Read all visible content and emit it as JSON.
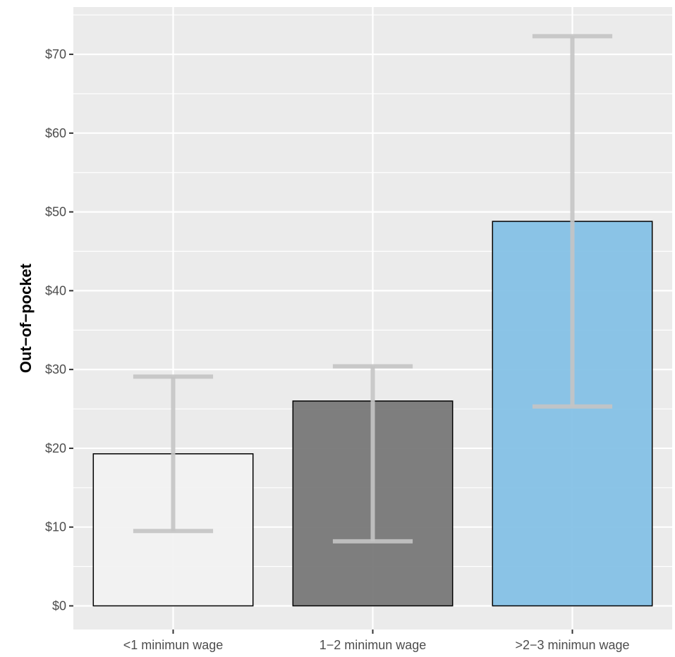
{
  "chart_data": {
    "type": "bar",
    "categories": [
      "<1 minimun wage",
      "1−2 minimun wage",
      ">2−3 minimun wage"
    ],
    "values": [
      19.3,
      26.0,
      48.8
    ],
    "error_bars": [
      {
        "low": 9.5,
        "high": 29.1
      },
      {
        "low": 8.2,
        "high": 30.4
      },
      {
        "low": 25.3,
        "high": 72.3
      }
    ],
    "bar_colors": [
      "#f2f2f2",
      "#787878",
      "#85c1e6"
    ],
    "error_bar_color": "#c4c4c4",
    "panel_background": "#ebebeb",
    "ylabel": "Out−of−pocket",
    "xlabel": "",
    "ylim": [
      -3,
      76
    ],
    "yticks": [
      0,
      10,
      20,
      30,
      40,
      50,
      60,
      70
    ],
    "ytick_labels": [
      "$0",
      "$10",
      "$20",
      "$30",
      "$40",
      "$50",
      "$60",
      "$70"
    ],
    "grid": true,
    "legend": "none"
  }
}
